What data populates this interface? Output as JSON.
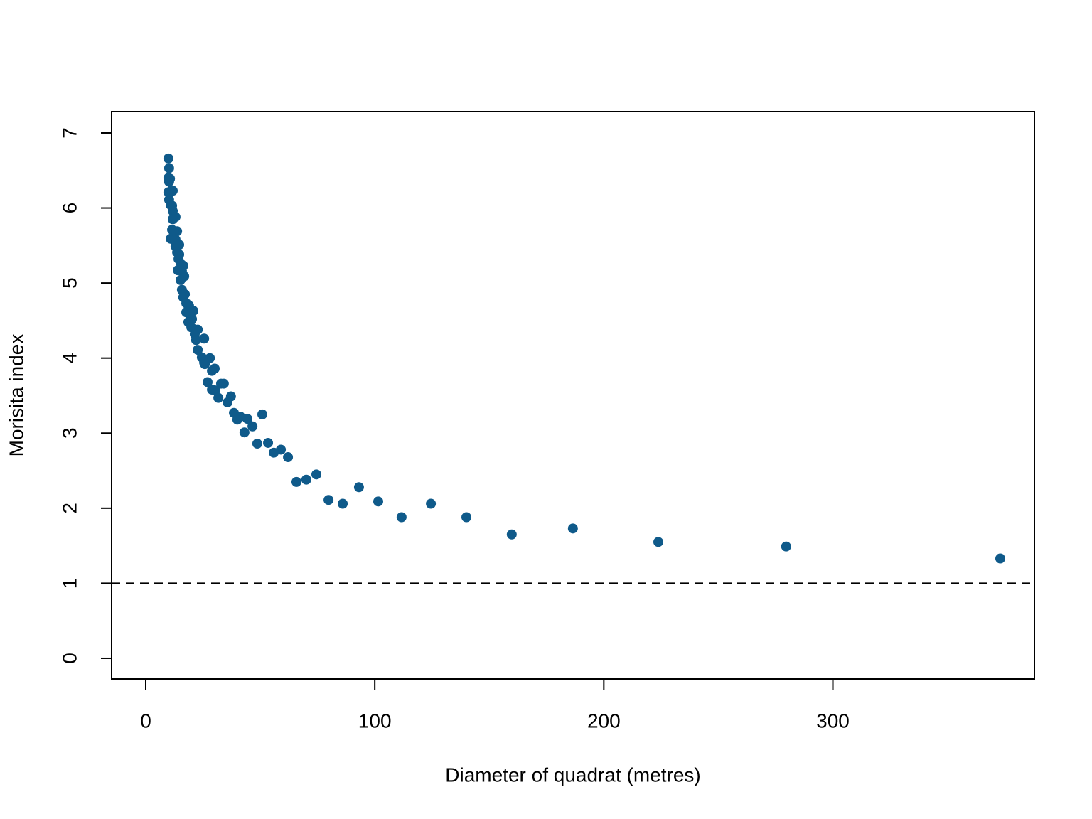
{
  "chart_data": {
    "type": "scatter",
    "xlabel": "Diameter of quadrat (metres)",
    "ylabel": "Morisita index",
    "color": "#0f5a8a",
    "hline": 1,
    "xlim": [
      -14.9,
      388
    ],
    "xticks": [
      0,
      100,
      200,
      300
    ],
    "ylim": [
      -0.275,
      7.284
    ],
    "yticks": [
      0,
      1,
      2,
      3,
      4,
      5,
      6,
      7
    ],
    "x": [
      9.9,
      10.2,
      9.9,
      10.6,
      10.2,
      9.9,
      11.2,
      11.8,
      10.2,
      10.9,
      11.5,
      11.8,
      13.0,
      11.8,
      11.5,
      13.7,
      12.4,
      10.9,
      13.0,
      14.6,
      13.0,
      13.7,
      14.6,
      14.3,
      15.5,
      16.4,
      14.0,
      15.8,
      16.8,
      15.2,
      15.8,
      17.1,
      16.4,
      17.7,
      18.9,
      17.7,
      20.8,
      19.2,
      20.2,
      18.6,
      19.9,
      22.7,
      21.4,
      25.5,
      22.0,
      22.7,
      24.5,
      28.0,
      25.5,
      25.8,
      30.1,
      28.9,
      27.0,
      32.9,
      34.1,
      28.9,
      30.4,
      37.2,
      31.7,
      35.7,
      38.5,
      41.3,
      50.9,
      40.0,
      44.4,
      46.6,
      43.1,
      48.7,
      53.4,
      59.0,
      55.9,
      62.1,
      74.5,
      70.1,
      65.8,
      93.1,
      79.8,
      101.5,
      86.0,
      124.5,
      111.7,
      140.0,
      186.5,
      159.8,
      223.8,
      279.6,
      373.1
    ],
    "values": [
      6.66,
      6.53,
      6.4,
      6.39,
      6.35,
      6.21,
      6.23,
      6.23,
      6.11,
      6.04,
      6.03,
      5.96,
      5.88,
      5.85,
      5.71,
      5.69,
      5.67,
      5.59,
      5.58,
      5.51,
      5.49,
      5.41,
      5.38,
      5.32,
      5.25,
      5.23,
      5.17,
      5.16,
      5.09,
      5.04,
      4.91,
      4.85,
      4.81,
      4.73,
      4.7,
      4.61,
      4.63,
      4.58,
      4.52,
      4.48,
      4.41,
      4.38,
      4.32,
      4.26,
      4.24,
      4.11,
      4.01,
      4.0,
      3.94,
      3.92,
      3.86,
      3.83,
      3.68,
      3.66,
      3.66,
      3.58,
      3.57,
      3.49,
      3.47,
      3.41,
      3.27,
      3.22,
      3.25,
      3.18,
      3.19,
      3.09,
      3.01,
      2.86,
      2.87,
      2.78,
      2.74,
      2.68,
      2.45,
      2.38,
      2.35,
      2.28,
      2.11,
      2.09,
      2.06,
      2.06,
      1.88,
      1.88,
      1.73,
      1.65,
      1.55,
      1.49,
      1.33
    ]
  }
}
